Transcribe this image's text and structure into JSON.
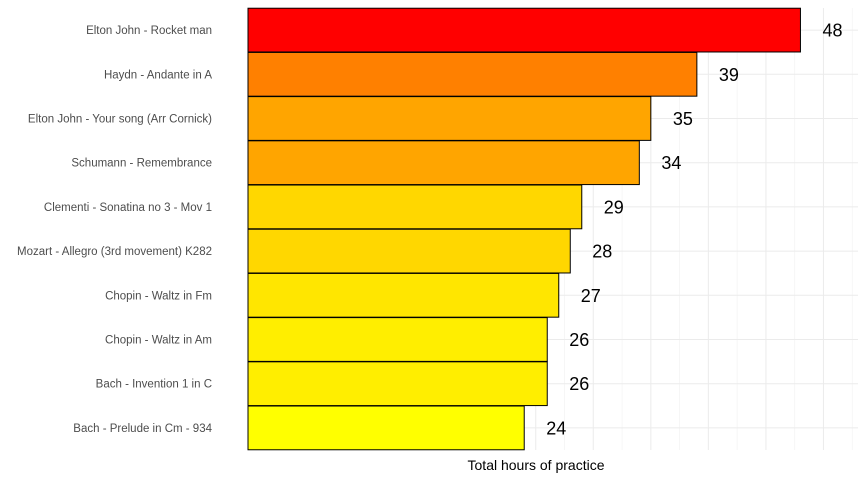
{
  "chart_data": {
    "type": "bar",
    "orientation": "horizontal",
    "categories": [
      "Elton John - Rocket man",
      "Haydn - Andante in A",
      "Elton John - Your song (Arr Cornick)",
      "Schumann - Remembrance",
      "Clementi - Sonatina no 3 - Mov 1",
      "Mozart - Allegro (3rd movement) K282",
      "Chopin - Waltz in Fm",
      "Chopin - Waltz in Am",
      "Bach - Invention 1 in C",
      "Bach - Prelude in Cm - 934"
    ],
    "values": [
      48,
      39,
      35,
      34,
      29,
      28,
      27,
      26,
      26,
      24
    ],
    "bar_colors": [
      "#ff0000",
      "#ff8000",
      "#ffa500",
      "#ffa500",
      "#ffd700",
      "#ffd700",
      "#ffe600",
      "#ffee00",
      "#ffee00",
      "#ffff00"
    ],
    "xlabel": "Total hours of practice",
    "ylabel": "",
    "xlim": [
      0,
      53
    ],
    "x_ticks_labeled": false,
    "grid": true,
    "data_labels": true,
    "legend": "none"
  }
}
